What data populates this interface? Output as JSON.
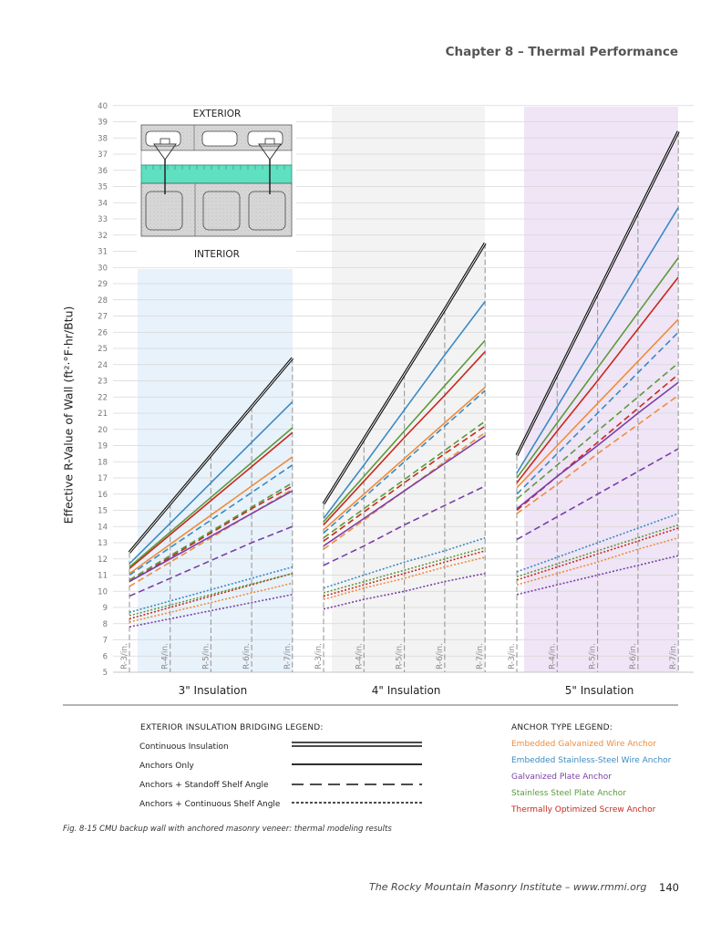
{
  "header": {
    "chapter": "Chapter 8 – Thermal Performance"
  },
  "chart_data": {
    "type": "line",
    "ylabel": "Effective R-Value of Wall (ft²·°F·hr/Btu)",
    "ylim": [
      5,
      40
    ],
    "yticks": [
      5,
      6,
      7,
      8,
      9,
      10,
      11,
      12,
      13,
      14,
      15,
      16,
      17,
      18,
      19,
      20,
      21,
      22,
      23,
      24,
      25,
      26,
      27,
      28,
      29,
      30,
      31,
      32,
      33,
      34,
      35,
      36,
      37,
      38,
      39,
      40
    ],
    "panel_background_colors": [
      "#e8f2fb",
      "#f3f3f3",
      "#efe5f6"
    ],
    "panels": [
      {
        "title": "3\" Insulation",
        "x_categories": [
          "R-3/in.",
          "R-4/in.",
          "R-5/in.",
          "R-6/in.",
          "R-7/in."
        ],
        "series": [
          {
            "bridging": "Continuous Insulation",
            "anchor": null,
            "values": [
              12.4,
              15.4,
              18.4,
              21.4,
              24.4
            ]
          },
          {
            "bridging": "Anchors Only",
            "anchor": "Embedded Stainless-Steel Wire Anchor",
            "values": [
              11.7,
              14.2,
              16.7,
              19.2,
              21.7
            ]
          },
          {
            "bridging": "Anchors Only",
            "anchor": "Stainless Steel Plate Anchor",
            "values": [
              11.5,
              13.65,
              15.8,
              17.95,
              20.1
            ]
          },
          {
            "bridging": "Anchors Only",
            "anchor": "Thermally Optimized Screw Anchor",
            "values": [
              11.4,
              13.5,
              15.6,
              17.7,
              19.8
            ]
          },
          {
            "bridging": "Anchors Only",
            "anchor": "Embedded Galvanized Wire Anchor",
            "values": [
              11.1,
              12.9,
              14.7,
              16.5,
              18.3
            ]
          },
          {
            "bridging": "Anchors Only",
            "anchor": "Galvanized Plate Anchor",
            "values": [
              10.6,
              12.0,
              13.4,
              14.8,
              16.2
            ]
          },
          {
            "bridging": "Anchors + Standoff Shelf Angle",
            "anchor": "Embedded Stainless-Steel Wire Anchor",
            "values": [
              11.0,
              12.7,
              14.4,
              16.1,
              17.8
            ]
          },
          {
            "bridging": "Anchors + Standoff Shelf Angle",
            "anchor": "Stainless Steel Plate Anchor",
            "values": [
              10.7,
              12.2,
              13.7,
              15.2,
              16.7
            ]
          },
          {
            "bridging": "Anchors + Standoff Shelf Angle",
            "anchor": "Thermally Optimized Screw Anchor",
            "values": [
              10.6,
              12.1,
              13.6,
              15.1,
              16.5
            ]
          },
          {
            "bridging": "Anchors + Standoff Shelf Angle",
            "anchor": "Embedded Galvanized Wire Anchor",
            "values": [
              10.3,
              11.8,
              13.3,
              14.8,
              16.3
            ]
          },
          {
            "bridging": "Anchors + Standoff Shelf Angle",
            "anchor": "Galvanized Plate Anchor",
            "values": [
              9.7,
              10.8,
              11.9,
              13.0,
              14.0
            ]
          },
          {
            "bridging": "Anchors + Continuous Shelf Angle",
            "anchor": "Embedded Stainless-Steel Wire Anchor",
            "values": [
              8.7,
              9.4,
              10.1,
              10.8,
              11.5
            ]
          },
          {
            "bridging": "Anchors + Continuous Shelf Angle",
            "anchor": "Stainless Steel Plate Anchor",
            "values": [
              8.5,
              9.15,
              9.8,
              10.45,
              11.1
            ]
          },
          {
            "bridging": "Anchors + Continuous Shelf Angle",
            "anchor": "Thermally Optimized Screw Anchor",
            "values": [
              8.3,
              9.0,
              9.7,
              10.4,
              11.1
            ]
          },
          {
            "bridging": "Anchors + Continuous Shelf Angle",
            "anchor": "Embedded Galvanized Wire Anchor",
            "values": [
              8.1,
              8.7,
              9.3,
              9.9,
              10.5
            ]
          },
          {
            "bridging": "Anchors + Continuous Shelf Angle",
            "anchor": "Galvanized Plate Anchor",
            "values": [
              7.8,
              8.3,
              8.8,
              9.3,
              9.8
            ]
          }
        ]
      },
      {
        "title": "4\" Insulation",
        "x_categories": [
          "R-3/in.",
          "R-4/in.",
          "R-5/in.",
          "R-6/in.",
          "R-7/in."
        ],
        "series": [
          {
            "bridging": "Continuous Insulation",
            "anchor": null,
            "values": [
              15.4,
              19.4,
              23.4,
              27.4,
              31.5
            ]
          },
          {
            "bridging": "Anchors Only",
            "anchor": "Embedded Stainless-Steel Wire Anchor",
            "values": [
              14.5,
              17.8,
              21.2,
              24.6,
              27.9
            ]
          },
          {
            "bridging": "Anchors Only",
            "anchor": "Stainless Steel Plate Anchor",
            "values": [
              14.3,
              17.1,
              19.9,
              22.7,
              25.5
            ]
          },
          {
            "bridging": "Anchors Only",
            "anchor": "Thermally Optimized Screw Anchor",
            "values": [
              14.1,
              16.8,
              19.5,
              22.1,
              24.8
            ]
          },
          {
            "bridging": "Anchors Only",
            "anchor": "Embedded Galvanized Wire Anchor",
            "values": [
              13.8,
              16.0,
              18.2,
              20.4,
              22.6
            ]
          },
          {
            "bridging": "Anchors Only",
            "anchor": "Galvanized Plate Anchor",
            "values": [
              12.8,
              14.5,
              16.2,
              17.9,
              19.6
            ]
          },
          {
            "bridging": "Anchors + Standoff Shelf Angle",
            "anchor": "Embedded Stainless-Steel Wire Anchor",
            "values": [
              13.6,
              15.8,
              18.0,
              20.2,
              22.4
            ]
          },
          {
            "bridging": "Anchors + Standoff Shelf Angle",
            "anchor": "Stainless Steel Plate Anchor",
            "values": [
              13.3,
              15.1,
              16.9,
              18.7,
              20.5
            ]
          },
          {
            "bridging": "Anchors + Standoff Shelf Angle",
            "anchor": "Thermally Optimized Screw Anchor",
            "values": [
              13.1,
              14.9,
              16.7,
              18.5,
              20.2
            ]
          },
          {
            "bridging": "Anchors + Standoff Shelf Angle",
            "anchor": "Embedded Galvanized Wire Anchor",
            "values": [
              12.6,
              14.4,
              16.2,
              18.0,
              19.8
            ]
          },
          {
            "bridging": "Anchors + Standoff Shelf Angle",
            "anchor": "Galvanized Plate Anchor",
            "values": [
              11.6,
              12.8,
              14.1,
              15.3,
              16.5
            ]
          },
          {
            "bridging": "Anchors + Continuous Shelf Angle",
            "anchor": "Embedded Stainless-Steel Wire Anchor",
            "values": [
              10.2,
              11.0,
              11.8,
              12.5,
              13.3
            ]
          },
          {
            "bridging": "Anchors + Continuous Shelf Angle",
            "anchor": "Stainless Steel Plate Anchor",
            "values": [
              9.9,
              10.6,
              11.3,
              12.0,
              12.7
            ]
          },
          {
            "bridging": "Anchors + Continuous Shelf Angle",
            "anchor": "Thermally Optimized Screw Anchor",
            "values": [
              9.7,
              10.4,
              11.1,
              11.8,
              12.5
            ]
          },
          {
            "bridging": "Anchors + Continuous Shelf Angle",
            "anchor": "Embedded Galvanized Wire Anchor",
            "values": [
              9.5,
              10.2,
              10.8,
              11.5,
              12.1
            ]
          },
          {
            "bridging": "Anchors + Continuous Shelf Angle",
            "anchor": "Galvanized Plate Anchor",
            "values": [
              8.9,
              9.5,
              10.0,
              10.6,
              11.1
            ]
          }
        ]
      },
      {
        "title": "5\" Insulation",
        "x_categories": [
          "R-3/in.",
          "R-4/in.",
          "R-5/in.",
          "R-6/in.",
          "R-7/in."
        ],
        "series": [
          {
            "bridging": "Continuous Insulation",
            "anchor": null,
            "values": [
              18.4,
              23.4,
              28.4,
              33.4,
              38.4
            ]
          },
          {
            "bridging": "Anchors Only",
            "anchor": "Embedded Stainless-Steel Wire Anchor",
            "values": [
              17.3,
              21.4,
              25.5,
              29.6,
              33.7
            ]
          },
          {
            "bridging": "Anchors Only",
            "anchor": "Stainless Steel Plate Anchor",
            "values": [
              17.0,
              20.4,
              23.8,
              27.2,
              30.6
            ]
          },
          {
            "bridging": "Anchors Only",
            "anchor": "Thermally Optimized Screw Anchor",
            "values": [
              16.7,
              19.9,
              23.0,
              26.2,
              29.4
            ]
          },
          {
            "bridging": "Anchors Only",
            "anchor": "Embedded Galvanized Wire Anchor",
            "values": [
              16.4,
              19.0,
              21.6,
              24.2,
              26.8
            ]
          },
          {
            "bridging": "Anchors Only",
            "anchor": "Galvanized Plate Anchor",
            "values": [
              15.1,
              17.1,
              19.0,
              21.0,
              22.9
            ]
          },
          {
            "bridging": "Anchors + Standoff Shelf Angle",
            "anchor": "Embedded Stainless-Steel Wire Anchor",
            "values": [
              16.0,
              18.5,
              21.0,
              23.5,
              26.0
            ]
          },
          {
            "bridging": "Anchors + Standoff Shelf Angle",
            "anchor": "Stainless Steel Plate Anchor",
            "values": [
              15.7,
              17.8,
              19.9,
              22.0,
              24.1
            ]
          },
          {
            "bridging": "Anchors + Standoff Shelf Angle",
            "anchor": "Thermally Optimized Screw Anchor",
            "values": [
              15.0,
              17.1,
              19.2,
              21.3,
              23.4
            ]
          },
          {
            "bridging": "Anchors + Standoff Shelf Angle",
            "anchor": "Embedded Galvanized Wire Anchor",
            "values": [
              14.8,
              16.6,
              18.5,
              20.3,
              22.1
            ]
          },
          {
            "bridging": "Anchors + Standoff Shelf Angle",
            "anchor": "Galvanized Plate Anchor",
            "values": [
              13.2,
              14.6,
              16.0,
              17.4,
              18.8
            ]
          },
          {
            "bridging": "Anchors + Continuous Shelf Angle",
            "anchor": "Embedded Stainless-Steel Wire Anchor",
            "values": [
              11.2,
              12.1,
              13.0,
              13.9,
              14.8
            ]
          },
          {
            "bridging": "Anchors + Continuous Shelf Angle",
            "anchor": "Stainless Steel Plate Anchor",
            "values": [
              10.9,
              11.7,
              12.5,
              13.3,
              14.1
            ]
          },
          {
            "bridging": "Anchors + Continuous Shelf Angle",
            "anchor": "Thermally Optimized Screw Anchor",
            "values": [
              10.7,
              11.5,
              12.3,
              13.1,
              13.9
            ]
          },
          {
            "bridging": "Anchors + Continuous Shelf Angle",
            "anchor": "Embedded Galvanized Wire Anchor",
            "values": [
              10.4,
              11.1,
              11.8,
              12.6,
              13.3
            ]
          },
          {
            "bridging": "Anchors + Continuous Shelf Angle",
            "anchor": "Galvanized Plate Anchor",
            "values": [
              9.8,
              10.4,
              11.0,
              11.6,
              12.2
            ]
          }
        ]
      }
    ]
  },
  "inset": {
    "exterior_label": "EXTERIOR",
    "interior_label": "INTERIOR"
  },
  "bridging_legend": {
    "title": "EXTERIOR INSULATION BRIDGING LEGEND:",
    "items": [
      {
        "label": "Continuous Insulation",
        "style": "double"
      },
      {
        "label": "Anchors Only",
        "style": "solid"
      },
      {
        "label": "Anchors + Standoff Shelf Angle",
        "style": "dashed"
      },
      {
        "label": "Anchors + Continuous Shelf Angle",
        "style": "dotted"
      }
    ]
  },
  "anchor_legend": {
    "title": "ANCHOR TYPE LEGEND:",
    "items": [
      {
        "label": "Embedded Galvanized Wire Anchor",
        "color": "#ef8c3c"
      },
      {
        "label": "Embedded Stainless-Steel Wire Anchor",
        "color": "#3b8ac4"
      },
      {
        "label": "Galvanized Plate Anchor",
        "color": "#7b3fa8"
      },
      {
        "label": "Stainless Steel Plate Anchor",
        "color": "#5c9a3c"
      },
      {
        "label": "Thermally Optimized Screw Anchor",
        "color": "#c8281e"
      }
    ]
  },
  "caption": "Fig. 8-15  CMU backup wall with anchored masonry veneer: thermal modeling results",
  "footer": {
    "text": "The Rocky Mountain Masonry Institute – www.rmmi.org",
    "page": "140"
  }
}
